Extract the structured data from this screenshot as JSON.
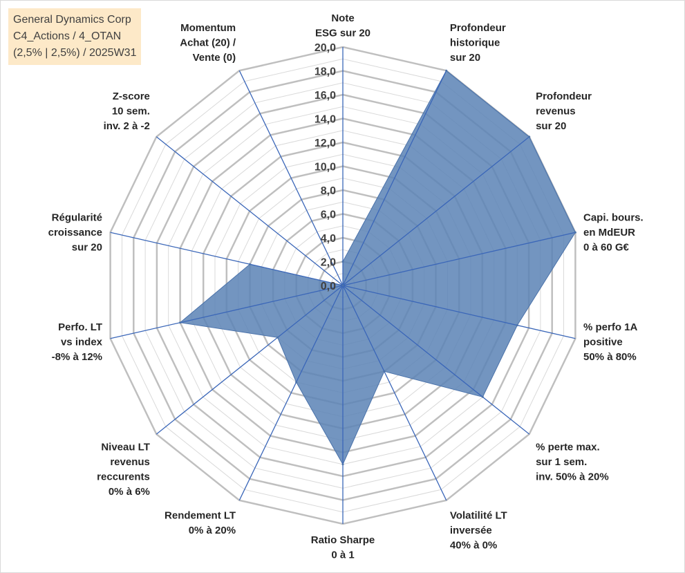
{
  "title": {
    "lines": [
      "General Dynamics Corp",
      "C4_Actions / 4_OTAN",
      "(2,5% | 2,5%) / 2025W31"
    ]
  },
  "colors": {
    "fill": "#5b82b5",
    "spoke": "#3a66b8",
    "grid_major": "#bfbfbf",
    "grid_minor": "#d9d9d9",
    "title_bg": "#fde9c8"
  },
  "chart_data": {
    "type": "radar",
    "range": [
      0,
      20
    ],
    "major_step": 2,
    "minor_step": 1,
    "tick_labels": [
      "0,0",
      "2,0",
      "4,0",
      "6,0",
      "8,0",
      "10,0",
      "12,0",
      "14,0",
      "16,0",
      "18,0",
      "20,0"
    ],
    "axes": [
      {
        "label": [
          "Note",
          "ESG sur 20"
        ],
        "value": 2
      },
      {
        "label": [
          "Profondeur",
          "historique",
          "sur 20"
        ],
        "value": 20
      },
      {
        "label": [
          "Profondeur",
          "revenus",
          "sur 20"
        ],
        "value": 20
      },
      {
        "label": [
          "Capi. bours.",
          "en MdEUR",
          "0 à 60 G€"
        ],
        "value": 20
      },
      {
        "label": [
          "% perfo 1A",
          "positive",
          "50% à 80%"
        ],
        "value": 15
      },
      {
        "label": [
          "% perte max.",
          "sur 1 sem.",
          "inv. 50% à 20%"
        ],
        "value": 15
      },
      {
        "label": [
          "Volatilité LT",
          "inversée",
          "40% à 0%"
        ],
        "value": 8
      },
      {
        "label": [
          "Ratio Sharpe",
          "0 à 1"
        ],
        "value": 15
      },
      {
        "label": [
          "Rendement LT",
          "0% à 20%"
        ],
        "value": 9
      },
      {
        "label": [
          "Niveau LT",
          "revenus",
          "reccurents",
          "0% à 6%"
        ],
        "value": 7
      },
      {
        "label": [
          "Perfo. LT",
          "vs index",
          "-8% à 12%"
        ],
        "value": 14
      },
      {
        "label": [
          "Régularité",
          "croissance",
          "sur 20"
        ],
        "value": 8
      },
      {
        "label": [
          "Z-score",
          "10 sem.",
          "inv. 2 à -2"
        ],
        "value": 0
      },
      {
        "label": [
          "Momentum",
          "Achat (20) /",
          "Vente (0)"
        ],
        "value": 0
      }
    ]
  }
}
